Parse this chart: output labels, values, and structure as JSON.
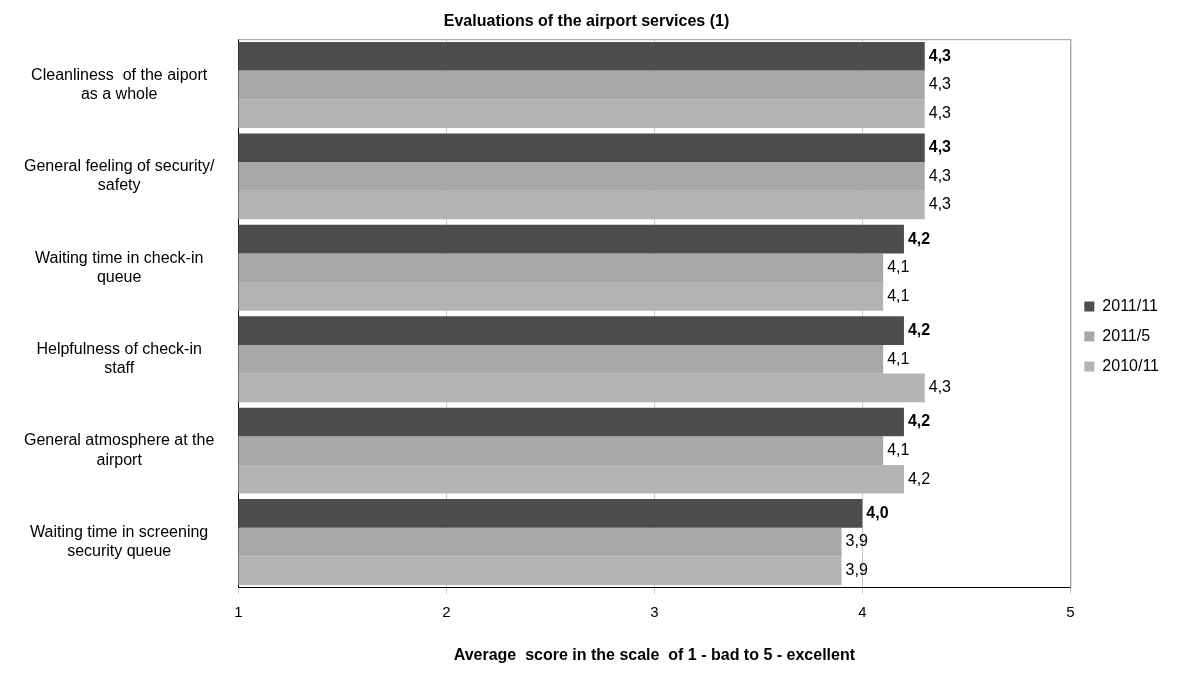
{
  "chart_data": {
    "type": "bar",
    "orientation": "horizontal",
    "title": "Evaluations of the airport services (1)",
    "xlabel": "Average  score in the scale  of 1 - bad to 5 - excellent",
    "categories": [
      "Cleanliness  of the aiport as a whole",
      "General feeling of security/ safety",
      "Waiting time in check-in queue",
      "Helpfulness of check-in staff",
      "General atmosphere at the airport",
      "Waiting time in screening security queue"
    ],
    "series": [
      {
        "name": "2011/11",
        "color": "#4d4d4d",
        "values": [
          4.3,
          4.3,
          4.2,
          4.2,
          4.2,
          4.0
        ],
        "value_labels": [
          "4,3",
          "4,3",
          "4,2",
          "4,2",
          "4,2",
          "4,0"
        ]
      },
      {
        "name": "2011/5",
        "color": "#a8a8a8",
        "values": [
          4.3,
          4.3,
          4.1,
          4.1,
          4.1,
          3.9
        ],
        "value_labels": [
          "4,3",
          "4,3",
          "4,1",
          "4,1",
          "4,1",
          "3,9"
        ]
      },
      {
        "name": "2010/11",
        "color": "#b3b3b3",
        "values": [
          4.3,
          4.3,
          4.1,
          4.3,
          4.2,
          3.9
        ],
        "value_labels": [
          "4,3",
          "4,3",
          "4,1",
          "4,3",
          "4,2",
          "3,9"
        ]
      }
    ],
    "xlim": [
      1,
      5
    ],
    "xticks": [
      1,
      2,
      3,
      4,
      5
    ],
    "grid": "x",
    "legend": "right"
  }
}
